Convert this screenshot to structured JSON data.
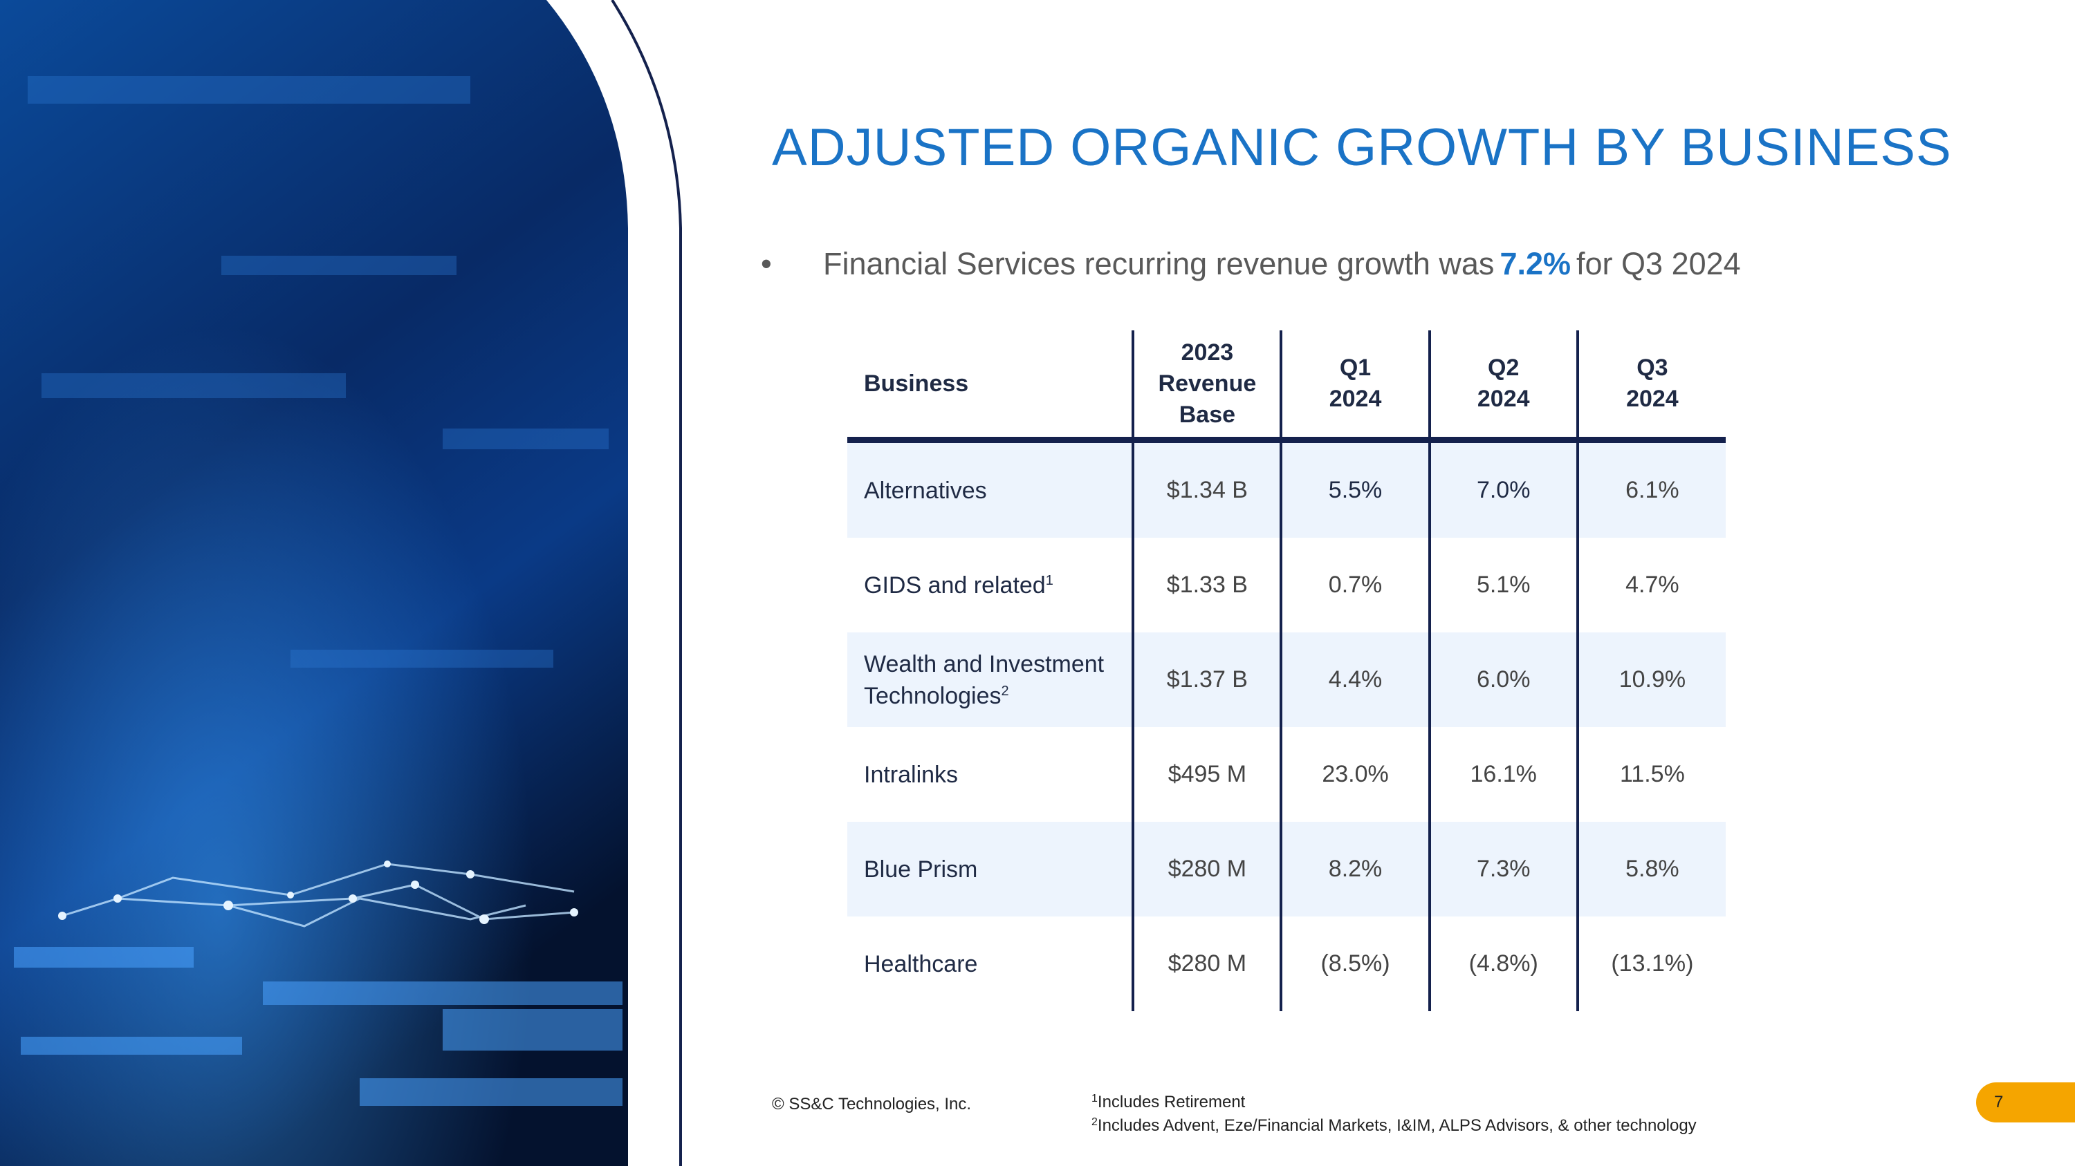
{
  "slide": {
    "title": "ADJUSTED ORGANIC GROWTH BY BUSINESS",
    "bullet": {
      "prefix": "Financial Services recurring revenue growth was",
      "highlight": "7.2%",
      "suffix": "for Q3 2024"
    }
  },
  "table": {
    "headers": [
      "Business",
      "2023 Revenue Base",
      "Q1 2024",
      "Q2 2024",
      "Q3 2024"
    ],
    "rows": [
      {
        "business": "Alternatives",
        "note": "",
        "base": "$1.34 B",
        "q1": "5.5%",
        "q2": "7.0%",
        "q3": "6.1%"
      },
      {
        "business": "GIDS and related",
        "note": "1",
        "base": "$1.33 B",
        "q1": "0.7%",
        "q2": "5.1%",
        "q3": "4.7%"
      },
      {
        "business": "Wealth and Investment Technologies",
        "note": "2",
        "base": "$1.37 B",
        "q1": "4.4%",
        "q2": "6.0%",
        "q3": "10.9%"
      },
      {
        "business": "Intralinks",
        "note": "",
        "base": "$495 M",
        "q1": "23.0%",
        "q2": "16.1%",
        "q3": "11.5%"
      },
      {
        "business": "Blue Prism",
        "note": "",
        "base": "$280 M",
        "q1": "8.2%",
        "q2": "7.3%",
        "q3": "5.8%"
      },
      {
        "business": "Healthcare",
        "note": "",
        "base": "$280 M",
        "q1": "(8.5%)",
        "q2": "(4.8%)",
        "q3": "(13.1%)"
      }
    ]
  },
  "footer": {
    "copyright": "© SS&C Technologies, Inc.",
    "footnotes": [
      {
        "marker": "1",
        "text": "Includes Retirement"
      },
      {
        "marker": "2",
        "text": "Includes Advent, Eze/Financial Markets, I&IM, ALPS Advisors, & other technology"
      }
    ],
    "page_number": "7"
  },
  "colors": {
    "title": "#1a73c6",
    "table_rule": "#14214d",
    "row_shade": "#edf4fd",
    "page_tab": "#f5a500",
    "hero_dark": "#06163a",
    "hero_light": "#1b6fd0"
  }
}
